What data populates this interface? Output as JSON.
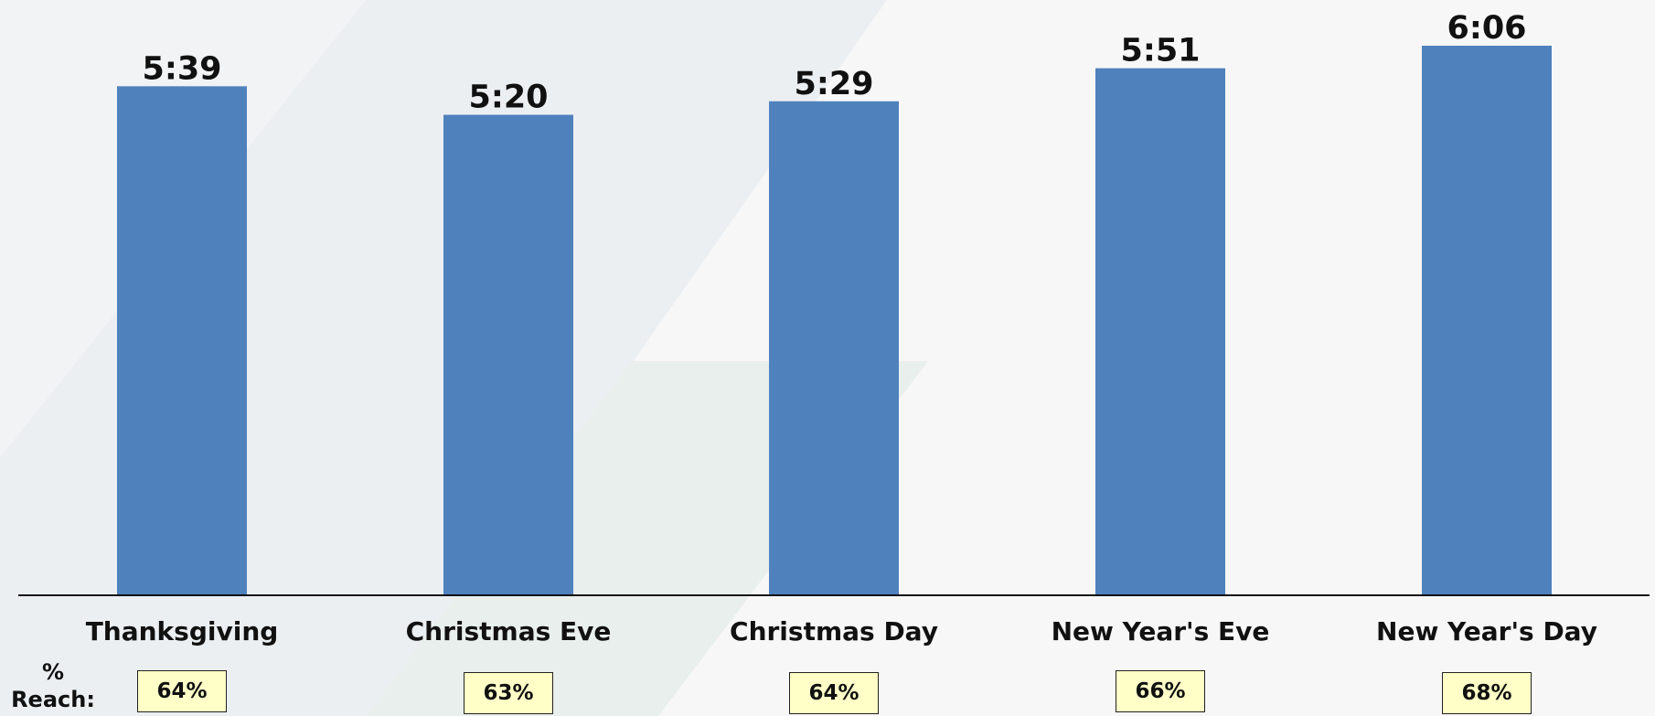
{
  "chart_data": {
    "type": "bar",
    "categories": [
      "Thanksgiving",
      "Christmas Eve",
      "Christmas Day",
      "New Year's Eve",
      "New Year's Day"
    ],
    "values": [
      339,
      320,
      329,
      351,
      366
    ],
    "value_labels": [
      "5:39",
      "5:20",
      "5:29",
      "5:51",
      "6:06"
    ],
    "value_unit": "minutes",
    "ylim": [
      0,
      366
    ],
    "grid": false,
    "bar_color": "#4f81bd",
    "reach_label": "% Reach:",
    "reach_values": [
      "64%",
      "63%",
      "64%",
      "66%",
      "68%"
    ],
    "reach_box_color": "#ffffc8"
  }
}
